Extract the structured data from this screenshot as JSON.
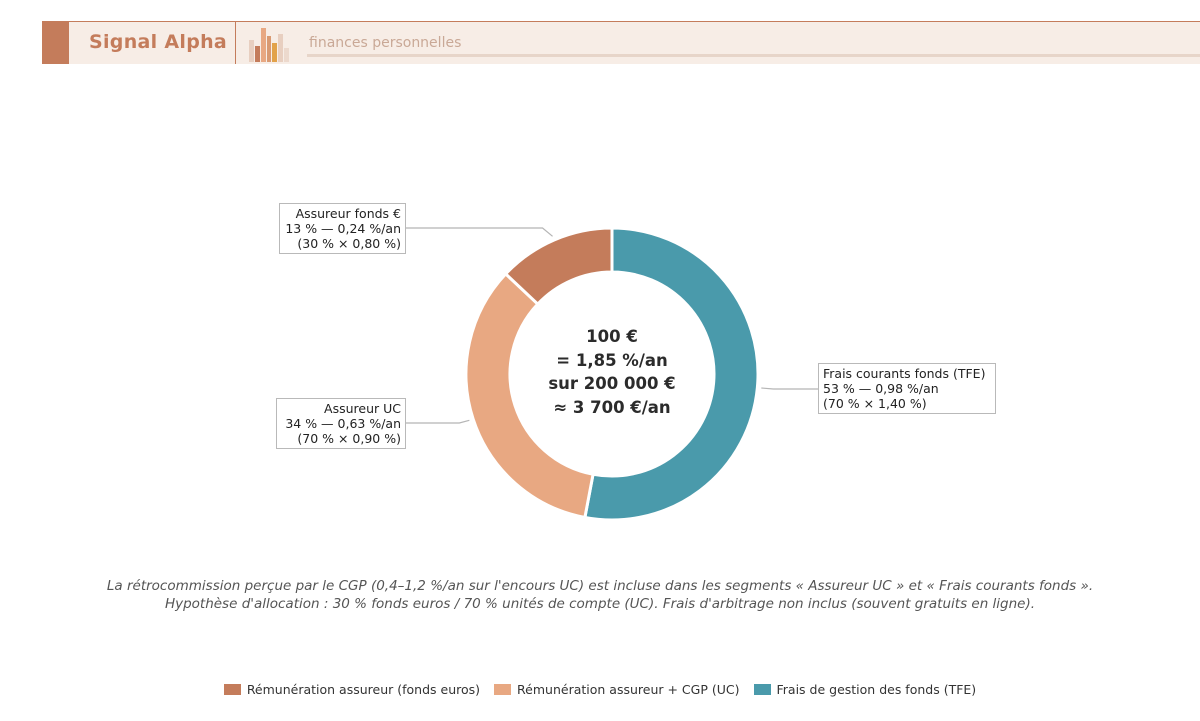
{
  "header": {
    "brand": "Signal Alpha",
    "tagline": "finances personnelles"
  },
  "chart_data": {
    "type": "pie",
    "donut": true,
    "center_text": [
      "100 €",
      "= 1,85 %/an",
      "sur 200 000 €",
      "≈ 3 700 €/an"
    ],
    "slices": [
      {
        "name": "Frais de gestion des fonds (TFE)",
        "value": 0.98,
        "percent": 53,
        "color": "#4a9aab",
        "label": [
          "Frais courants fonds (TFE)",
          "53 % — 0,98 %/an",
          "(70 % × 1,40 %)"
        ]
      },
      {
        "name": "Rémunération assureur + CGP (UC)",
        "value": 0.63,
        "percent": 34,
        "color": "#e8a882",
        "label": [
          "Assureur UC",
          "34 % — 0,63 %/an",
          "(70 % × 0,90 %)"
        ]
      },
      {
        "name": "Rémunération assureur (fonds euros)",
        "value": 0.24,
        "percent": 13,
        "color": "#c47c5b",
        "label": [
          "Assureur fonds €",
          "13 % — 0,24 %/an",
          "(30 % × 0,80 %)"
        ]
      }
    ],
    "legend": [
      {
        "name": "Rémunération assureur (fonds euros)",
        "color": "#c47c5b"
      },
      {
        "name": "Rémunération assureur + CGP (UC)",
        "color": "#e8a882"
      },
      {
        "name": "Frais de gestion des fonds (TFE)",
        "color": "#4a9aab"
      }
    ],
    "legend_placement": "bottom",
    "notes": [
      "La rétrocommission perçue par le CGP (0,4–1,2 %/an sur l'encours UC) est incluse dans les segments « Assureur UC » et « Frais courants fonds ».",
      "Hypothèse d'allocation : 30 % fonds euros / 70 % unités de compte (UC). Frais d'arbitrage non inclus (souvent gratuits en ligne)."
    ]
  }
}
